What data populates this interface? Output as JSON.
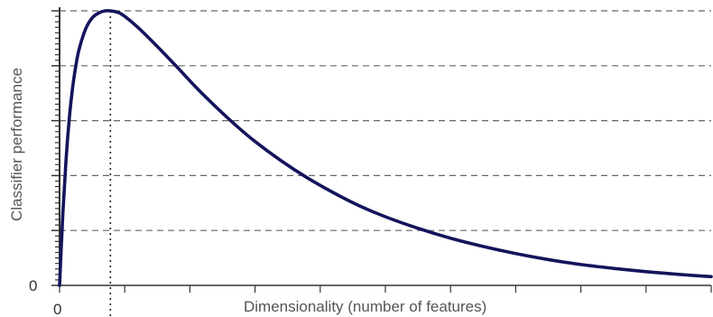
{
  "chart_data": {
    "type": "line",
    "title": "",
    "xlabel": "Dimensionality (number of features)",
    "ylabel": "Classifier performance",
    "x_origin_label": "0",
    "y_origin_label": "0",
    "xlim": [
      0,
      100
    ],
    "ylim": [
      0,
      5
    ],
    "grid": {
      "horizontal": true,
      "style": "dashed",
      "values": [
        1,
        2,
        3,
        4,
        5
      ]
    },
    "peak_marker": {
      "x": 7.8,
      "style": "dotted"
    },
    "series": [
      {
        "color": "#14145c",
        "x": [
          0,
          0.5,
          1,
          1.5,
          2,
          2.5,
          3,
          4,
          5,
          6,
          7,
          7.8,
          9,
          10,
          12,
          15,
          18,
          21,
          24,
          27,
          30,
          34,
          38,
          42,
          46,
          50,
          55,
          60,
          65,
          70,
          75,
          80,
          85,
          90,
          95,
          100
        ],
        "y": [
          0,
          1.3,
          2.3,
          3.05,
          3.6,
          4.0,
          4.3,
          4.67,
          4.87,
          4.96,
          5.0,
          5.0,
          4.97,
          4.9,
          4.7,
          4.35,
          3.98,
          3.6,
          3.25,
          2.92,
          2.62,
          2.27,
          1.96,
          1.69,
          1.45,
          1.25,
          1.04,
          0.86,
          0.71,
          0.58,
          0.47,
          0.38,
          0.31,
          0.25,
          0.2,
          0.16
        ]
      }
    ]
  }
}
